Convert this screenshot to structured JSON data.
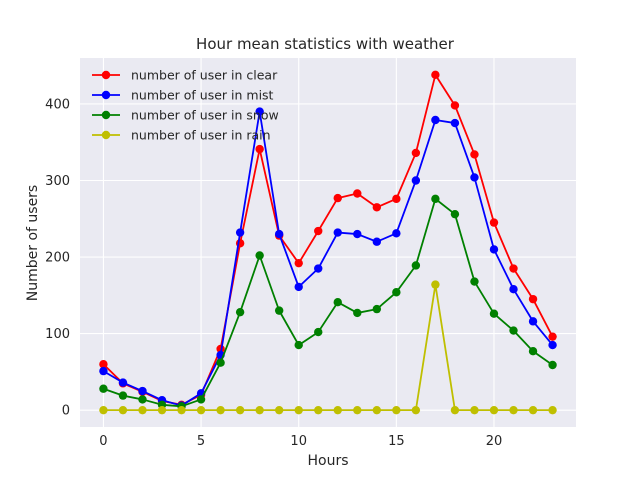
{
  "chart_data": {
    "type": "line",
    "title": "Hour mean statistics with weather",
    "xlabel": "Hours",
    "ylabel": "Number of users",
    "x": [
      0,
      1,
      2,
      3,
      4,
      5,
      6,
      7,
      8,
      9,
      10,
      11,
      12,
      13,
      14,
      15,
      16,
      17,
      18,
      19,
      20,
      21,
      22,
      23
    ],
    "xlim": [
      -1.2,
      24.2
    ],
    "ylim": [
      -22,
      460
    ],
    "xticks": [
      0,
      5,
      10,
      15,
      20
    ],
    "yticks": [
      0,
      100,
      200,
      300,
      400
    ],
    "grid": true,
    "legend_position": "top-left",
    "series": [
      {
        "name": "number of user in clear",
        "color": "#ff0000",
        "values": [
          60,
          35,
          24,
          12,
          7,
          20,
          80,
          218,
          341,
          228,
          192,
          234,
          277,
          283,
          265,
          276,
          336,
          438,
          398,
          334,
          245,
          185,
          145,
          96
        ]
      },
      {
        "name": "number of user in mist",
        "color": "#0000ff",
        "values": [
          51,
          36,
          25,
          13,
          6,
          22,
          72,
          232,
          390,
          230,
          161,
          185,
          232,
          230,
          220,
          231,
          300,
          379,
          375,
          304,
          210,
          158,
          116,
          85
        ]
      },
      {
        "name": "number of user in snow",
        "color": "#008000",
        "values": [
          28,
          19,
          14,
          7,
          5,
          14,
          62,
          128,
          202,
          130,
          85,
          102,
          141,
          127,
          132,
          154,
          189,
          276,
          256,
          168,
          126,
          104,
          77,
          59
        ]
      },
      {
        "name": "number of user in rain",
        "color": "#bfbf00",
        "values": [
          0,
          0,
          0,
          0,
          0,
          0,
          0,
          0,
          0,
          0,
          0,
          0,
          0,
          0,
          0,
          0,
          0,
          164,
          0,
          0,
          0,
          0,
          0,
          0
        ]
      }
    ]
  },
  "colors": {
    "plot_background": "#eaeaf2",
    "grid": "#ffffff",
    "text": "#262626"
  }
}
